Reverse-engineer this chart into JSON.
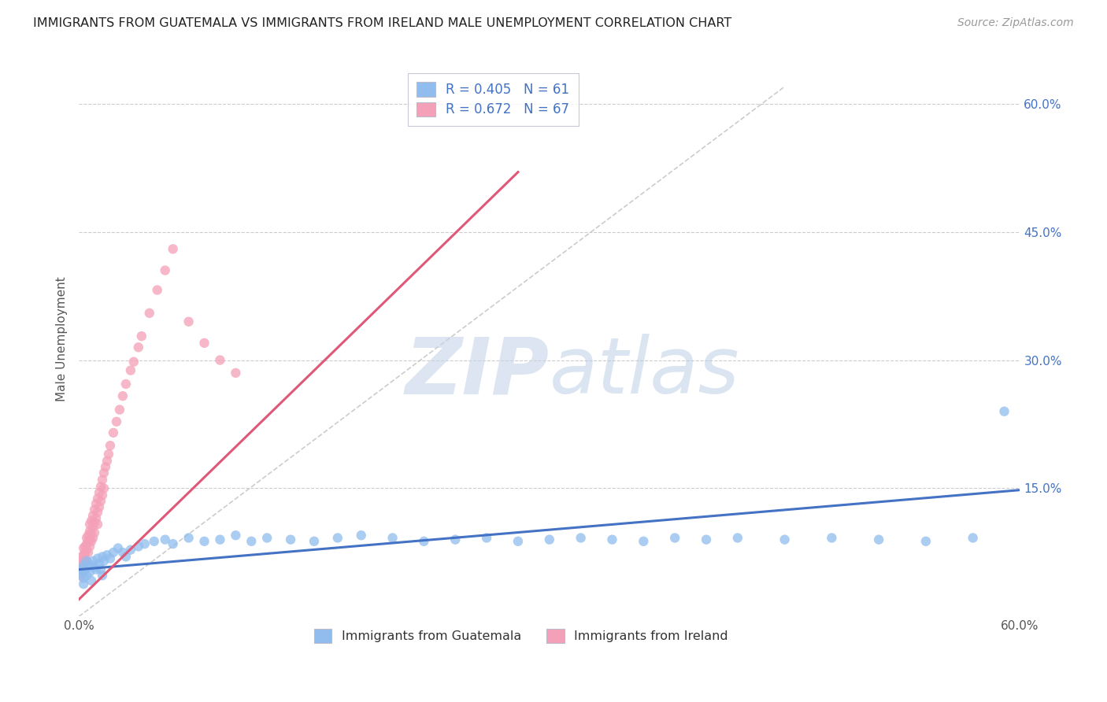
{
  "title": "IMMIGRANTS FROM GUATEMALA VS IMMIGRANTS FROM IRELAND MALE UNEMPLOYMENT CORRELATION CHART",
  "source": "Source: ZipAtlas.com",
  "ylabel": "Male Unemployment",
  "xlim": [
    0.0,
    0.6
  ],
  "ylim": [
    0.0,
    0.65
  ],
  "xtick_labels": [
    "0.0%",
    "60.0%"
  ],
  "xtick_vals": [
    0.0,
    0.6
  ],
  "ytick_labels": [
    "15.0%",
    "30.0%",
    "45.0%",
    "60.0%"
  ],
  "ytick_vals": [
    0.15,
    0.3,
    0.45,
    0.6
  ],
  "guatemala_R": 0.405,
  "guatemala_N": 61,
  "ireland_R": 0.672,
  "ireland_N": 67,
  "guatemala_color": "#90BDEE",
  "ireland_color": "#F4A0B8",
  "guatemala_line_color": "#4472C4",
  "ireland_line_color": "#E05878",
  "watermark_zip": "ZIP",
  "watermark_atlas": "atlas",
  "background_color": "#FFFFFF",
  "grid_color": "#CCCCCC",
  "guatemala_x": [
    0.001,
    0.002,
    0.003,
    0.003,
    0.004,
    0.005,
    0.005,
    0.006,
    0.007,
    0.008,
    0.009,
    0.01,
    0.011,
    0.012,
    0.013,
    0.014,
    0.015,
    0.016,
    0.018,
    0.02,
    0.022,
    0.025,
    0.028,
    0.03,
    0.033,
    0.038,
    0.042,
    0.048,
    0.055,
    0.06,
    0.07,
    0.08,
    0.09,
    0.1,
    0.11,
    0.12,
    0.135,
    0.15,
    0.165,
    0.18,
    0.2,
    0.22,
    0.24,
    0.26,
    0.28,
    0.3,
    0.32,
    0.34,
    0.36,
    0.38,
    0.4,
    0.42,
    0.45,
    0.48,
    0.51,
    0.54,
    0.57,
    0.59,
    0.003,
    0.008,
    0.015
  ],
  "guatemala_y": [
    0.055,
    0.05,
    0.06,
    0.045,
    0.055,
    0.065,
    0.048,
    0.058,
    0.052,
    0.06,
    0.065,
    0.058,
    0.055,
    0.068,
    0.062,
    0.055,
    0.07,
    0.065,
    0.072,
    0.068,
    0.075,
    0.08,
    0.075,
    0.07,
    0.078,
    0.082,
    0.085,
    0.088,
    0.09,
    0.085,
    0.092,
    0.088,
    0.09,
    0.095,
    0.088,
    0.092,
    0.09,
    0.088,
    0.092,
    0.095,
    0.092,
    0.088,
    0.09,
    0.092,
    0.088,
    0.09,
    0.092,
    0.09,
    0.088,
    0.092,
    0.09,
    0.092,
    0.09,
    0.092,
    0.09,
    0.088,
    0.092,
    0.24,
    0.038,
    0.042,
    0.048
  ],
  "ireland_x": [
    0.001,
    0.001,
    0.001,
    0.002,
    0.002,
    0.002,
    0.003,
    0.003,
    0.003,
    0.003,
    0.004,
    0.004,
    0.004,
    0.005,
    0.005,
    0.005,
    0.005,
    0.006,
    0.006,
    0.006,
    0.007,
    0.007,
    0.007,
    0.007,
    0.008,
    0.008,
    0.008,
    0.009,
    0.009,
    0.009,
    0.01,
    0.01,
    0.01,
    0.011,
    0.011,
    0.012,
    0.012,
    0.012,
    0.013,
    0.013,
    0.014,
    0.014,
    0.015,
    0.015,
    0.016,
    0.016,
    0.017,
    0.018,
    0.019,
    0.02,
    0.022,
    0.024,
    0.026,
    0.028,
    0.03,
    0.033,
    0.035,
    0.038,
    0.04,
    0.045,
    0.05,
    0.055,
    0.06,
    0.07,
    0.08,
    0.09,
    0.1
  ],
  "ireland_y": [
    0.055,
    0.048,
    0.062,
    0.065,
    0.058,
    0.07,
    0.072,
    0.065,
    0.08,
    0.058,
    0.075,
    0.082,
    0.068,
    0.085,
    0.078,
    0.092,
    0.065,
    0.095,
    0.088,
    0.075,
    0.1,
    0.09,
    0.108,
    0.082,
    0.112,
    0.098,
    0.088,
    0.118,
    0.105,
    0.092,
    0.125,
    0.11,
    0.098,
    0.132,
    0.115,
    0.138,
    0.122,
    0.108,
    0.145,
    0.128,
    0.152,
    0.135,
    0.16,
    0.142,
    0.168,
    0.15,
    0.175,
    0.182,
    0.19,
    0.2,
    0.215,
    0.228,
    0.242,
    0.258,
    0.272,
    0.288,
    0.298,
    0.315,
    0.328,
    0.355,
    0.382,
    0.405,
    0.43,
    0.345,
    0.32,
    0.3,
    0.285
  ],
  "ireland_line_x0": 0.0,
  "ireland_line_y0": 0.02,
  "ireland_line_x1": 0.28,
  "ireland_line_y1": 0.52,
  "guatemala_line_x0": 0.0,
  "guatemala_line_y0": 0.055,
  "guatemala_line_x1": 0.6,
  "guatemala_line_y1": 0.148
}
